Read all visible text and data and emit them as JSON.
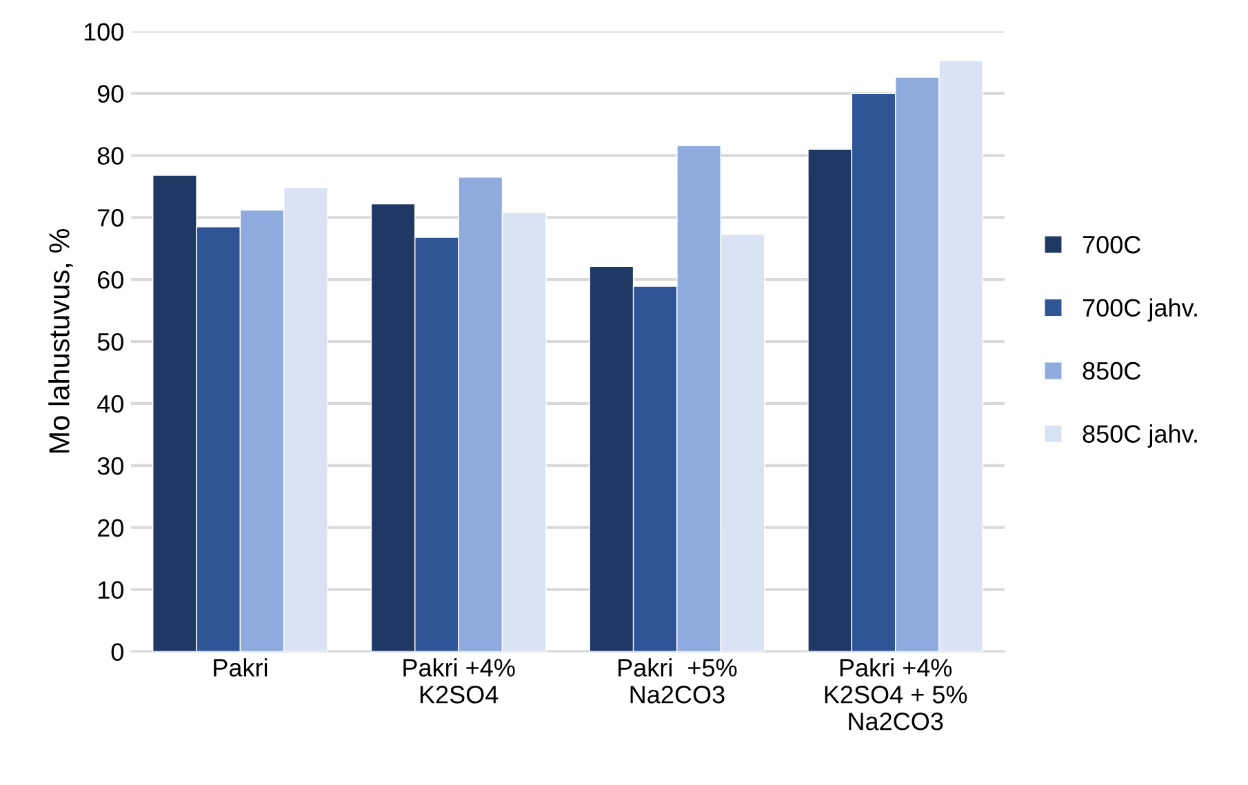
{
  "chart_data": {
    "type": "bar",
    "ylabel": "Mo lahustuvus, %",
    "categories": [
      "Pakri",
      "Pakri +4%\nK2SO4",
      "Pakri  +5%\nNa2CO3",
      "Pakri +4%\nK2SO4 + 5%\nNa2CO3"
    ],
    "series": [
      {
        "name": "700C",
        "color": "#203864",
        "values": [
          76.8,
          72.2,
          62.1,
          81.0
        ]
      },
      {
        "name": "700C jahv.",
        "color": "#2f5597",
        "values": [
          68.5,
          66.8,
          58.9,
          90.0
        ]
      },
      {
        "name": "850C",
        "color": "#8faadc",
        "values": [
          71.2,
          76.5,
          81.6,
          92.6
        ]
      },
      {
        "name": "850C jahv.",
        "color": "#dae3f3",
        "values": [
          74.8,
          70.8,
          67.3,
          95.3
        ]
      }
    ],
    "ylim": [
      0,
      100
    ],
    "yticks": [
      0,
      10,
      20,
      30,
      40,
      50,
      60,
      70,
      80,
      90,
      100
    ],
    "grid": "y",
    "legend": "right"
  }
}
